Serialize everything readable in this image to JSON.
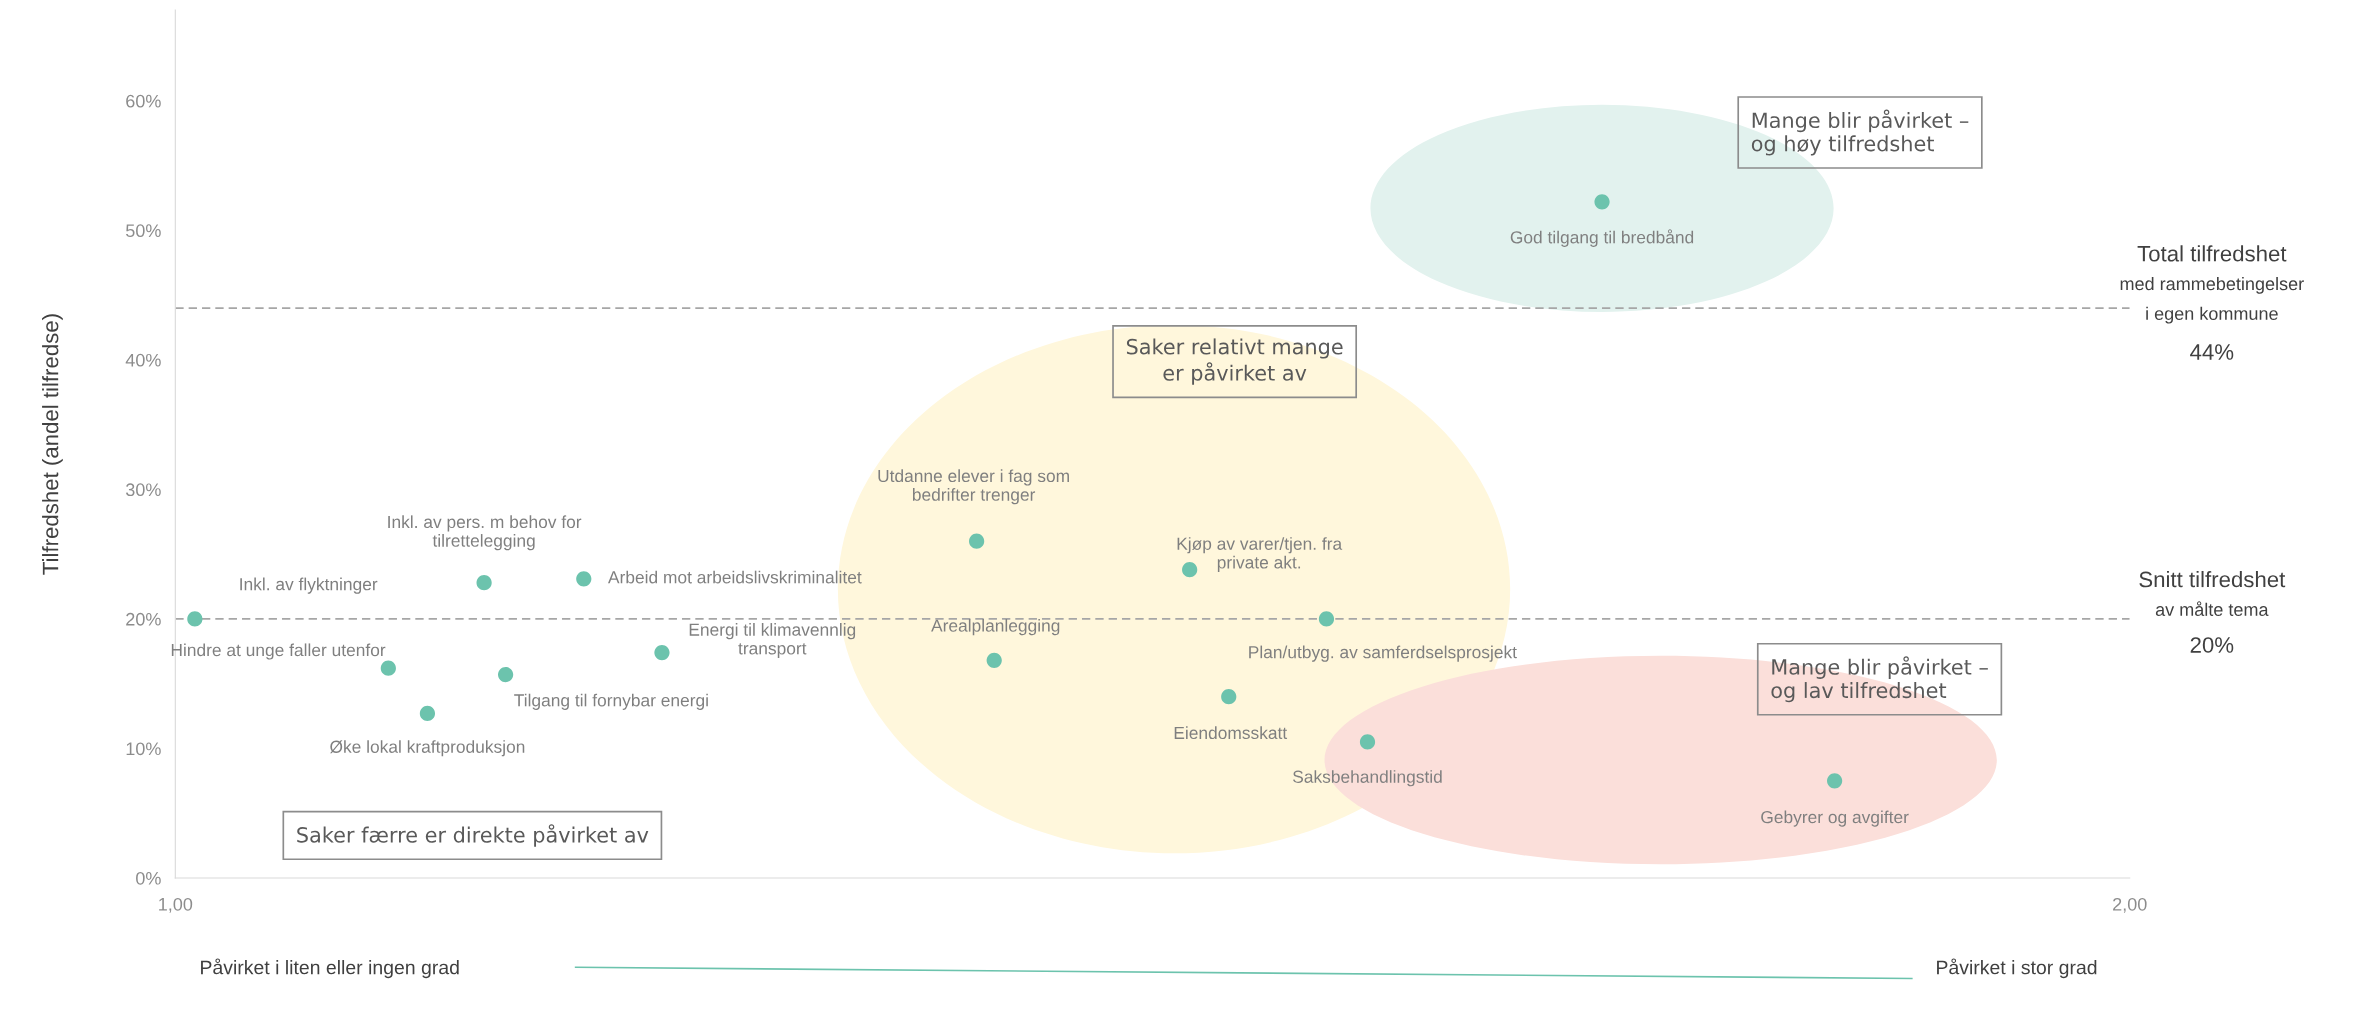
{
  "chart_data": {
    "type": "scatter",
    "ylabel": "Tilfredshet (andel tilfredse)",
    "xlim": [
      1,
      2
    ],
    "xticks": [
      {
        "value": 1,
        "label": "1,00"
      },
      {
        "value": 2,
        "label": "2,00"
      }
    ],
    "ylim": [
      0,
      67
    ],
    "yticks": [
      {
        "value": 0,
        "label": "0%"
      },
      {
        "value": 10,
        "label": "10%"
      },
      {
        "value": 20,
        "label": "20%"
      },
      {
        "value": 30,
        "label": "30%"
      },
      {
        "value": 40,
        "label": "40%"
      },
      {
        "value": 50,
        "label": "50%"
      },
      {
        "value": 60,
        "label": "60%"
      }
    ],
    "grid": false,
    "legend": false,
    "marker": "circle",
    "series": [
      {
        "color": "#6cc3ad",
        "x": [
          1.01,
          1.109,
          1.129,
          1.158,
          1.169,
          1.209,
          1.249,
          1.41,
          1.419,
          1.519,
          1.539,
          1.589,
          1.61,
          1.73,
          1.849
        ],
        "values": [
          20,
          16.2,
          12.7,
          22.8,
          15.7,
          23.1,
          17.4,
          26.0,
          16.8,
          23.8,
          14.0,
          20.0,
          10.5,
          52.2,
          7.5
        ]
      }
    ],
    "ref_lines": [
      {
        "axis": "y",
        "value": 44,
        "label": "Total tilfredshet\nmed rammebetingelser\ni egen kommune\n44%",
        "color": "#a6a6a6",
        "line_style": "dashed"
      },
      {
        "axis": "y",
        "value": 20,
        "label": "Snitt tilfredshet\nav målte tema\n20%",
        "color": "#a6a6a6",
        "line_style": "dashed"
      }
    ],
    "annotations": [
      {
        "text": "Inkl. av flyktninger",
        "x": 1.01,
        "y": 20
      },
      {
        "text": "Hindre at unge faller utenfor",
        "x": 1.109,
        "y": 16.2
      },
      {
        "text": "Øke lokal kraftproduksjon",
        "x": 1.129,
        "y": 12.7
      },
      {
        "text": "Inkl. av pers. m behov for\ntilrettelegging",
        "x": 1.158,
        "y": 22.8
      },
      {
        "text": "Tilgang til fornybar energi",
        "x": 1.169,
        "y": 15.7
      },
      {
        "text": "Arbeid mot arbeidslivskriminalitet",
        "x": 1.209,
        "y": 23.1
      },
      {
        "text": "Energi til klimavennlig\ntransport",
        "x": 1.249,
        "y": 17.4
      },
      {
        "text": "Utdanne elever i fag som\nbedrifter trenger",
        "x": 1.41,
        "y": 26.0
      },
      {
        "text": "Arealplanlegging",
        "x": 1.419,
        "y": 16.8
      },
      {
        "text": "Kjøp av varer/tjen. fra\nprivate akt.",
        "x": 1.519,
        "y": 23.8
      },
      {
        "text": "Plan/utbyg. av samferdselsprosjekt",
        "x": 1.589,
        "y": 20.0
      },
      {
        "text": "Eiendomsskatt",
        "x": 1.539,
        "y": 14.0
      },
      {
        "text": "Saksbehandlingstid",
        "x": 1.61,
        "y": 10.5
      },
      {
        "text": "God tilgang til bredbånd",
        "x": 1.73,
        "y": 52.2
      },
      {
        "text": "Gebyrer og avgifter",
        "x": 1.849,
        "y": 7.5
      },
      "Mange blir påvirket –\nog høy tilfredshet",
      "Saker relativt mange\ner påvirket av",
      "Mange blir påvirket –\nog lav tilfredshet",
      "Saker færre er direkte påvirket av",
      "Påvirket i liten eller ingen grad",
      "Påvirket i stor grad"
    ]
  }
}
